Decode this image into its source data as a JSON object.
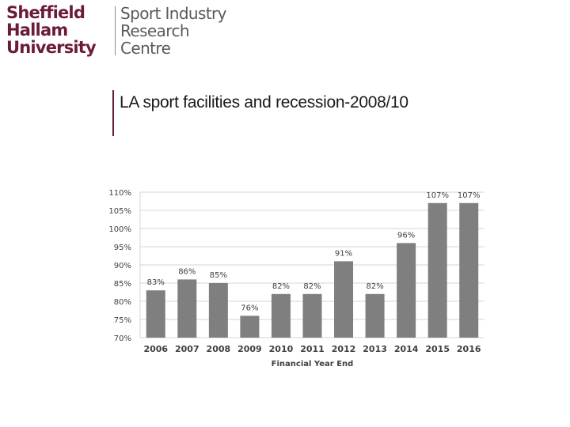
{
  "logo": {
    "university_lines": [
      "Sheffield",
      "Hallam",
      "University"
    ],
    "centre_lines": [
      "Sport Industry",
      "Research",
      "Centre"
    ]
  },
  "page": {
    "title": "LA sport facilities and recession-2008/10"
  },
  "colors": {
    "brand": "#6b1a3b",
    "bar": "#7f7f80",
    "grid": "#d6d6d6",
    "text": "#404040"
  },
  "chart_data": {
    "type": "bar",
    "categories": [
      "2006",
      "2007",
      "2008",
      "2009",
      "2010",
      "2011",
      "2012",
      "2013",
      "2014",
      "2015",
      "2016"
    ],
    "values": [
      83,
      86,
      85,
      76,
      82,
      82,
      91,
      82,
      96,
      107,
      107
    ],
    "data_labels": [
      "83%",
      "86%",
      "85%",
      "76%",
      "82%",
      "82%",
      "91%",
      "82%",
      "96%",
      "107%",
      "107%"
    ],
    "y_ticks": [
      "70%",
      "75%",
      "80%",
      "85%",
      "90%",
      "95%",
      "100%",
      "105%",
      "110%"
    ],
    "ylim": [
      70,
      110
    ],
    "xlabel": "Financial Year End",
    "ylabel": "",
    "grid": true
  }
}
